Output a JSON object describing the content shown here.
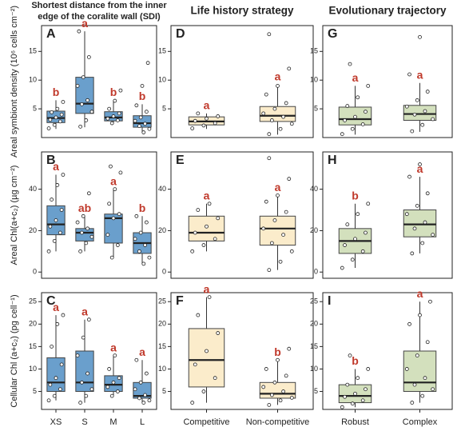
{
  "chart_data": [
    {
      "type": "box",
      "panel": "A",
      "title": [
        "Shortest distance from the inner",
        "edge of the coralite wall (SDI)"
      ],
      "ylabel": "Areal symbiont density (10⁶ cells cm⁻²)",
      "color": "#6a9fcc",
      "ylim": [
        0,
        19.5
      ],
      "yticks": [
        5,
        10,
        15
      ],
      "boxes": [
        {
          "min": 1.5,
          "q1": 2.6,
          "median": 3.4,
          "q3": 4.6,
          "max": 6.5
        },
        {
          "min": 1.8,
          "q1": 4.2,
          "median": 5.9,
          "q3": 10.5,
          "max": 18.5
        },
        {
          "min": 2.4,
          "q1": 2.9,
          "median": 3.5,
          "q3": 4.5,
          "max": 6.5
        },
        {
          "min": 0.8,
          "q1": 1.8,
          "median": 2.5,
          "q3": 3.8,
          "max": 5.8
        }
      ],
      "points": [
        [
          1.6,
          2.2,
          2.8,
          3.1,
          3.5,
          4,
          4.4,
          5,
          6.2
        ],
        [
          1.9,
          3,
          4.5,
          5.8,
          6.5,
          9,
          10.5,
          14,
          18.5
        ],
        [
          2.5,
          3,
          3.3,
          3.7,
          4.2,
          5,
          6.4,
          8.2
        ],
        [
          0.9,
          1.5,
          2,
          2.4,
          2.9,
          3.5,
          4.5,
          5.6,
          9,
          13
        ]
      ],
      "letters": [
        "b",
        "a",
        "b",
        "b"
      ]
    },
    {
      "type": "box",
      "panel": "D",
      "title": [
        "Life history strategy"
      ],
      "color": "#fbeccb",
      "ylim": [
        0,
        19.5
      ],
      "yticks": [
        5,
        10,
        15
      ],
      "boxes": [
        {
          "min": 1.5,
          "q1": 2.2,
          "median": 2.8,
          "q3": 3.6,
          "max": 4.2
        },
        {
          "min": 0.5,
          "q1": 2.8,
          "median": 3.8,
          "q3": 5.4,
          "max": 9.2
        }
      ],
      "points": [
        [
          1.6,
          2.1,
          2.5,
          2.9,
          3.3,
          3.7,
          4.2
        ],
        [
          0.6,
          1.5,
          2.4,
          3,
          3.6,
          4.2,
          5,
          6,
          7.5,
          9,
          12,
          18
        ]
      ],
      "letters": [
        "a",
        "a"
      ]
    },
    {
      "type": "box",
      "panel": "G",
      "title": [
        "Evolutionary trajectory"
      ],
      "color": "#d3e0bd",
      "ylim": [
        0,
        19.5
      ],
      "yticks": [
        5,
        10,
        15
      ],
      "boxes": [
        {
          "min": 0.5,
          "q1": 2.2,
          "median": 3.2,
          "q3": 5.3,
          "max": 9
        },
        {
          "min": 1,
          "q1": 3,
          "median": 4.1,
          "q3": 5.6,
          "max": 9.5
        }
      ],
      "points": [
        [
          0.6,
          1.5,
          2.3,
          3,
          3.6,
          4.5,
          5.5,
          7,
          9,
          12.8
        ],
        [
          1.1,
          2.2,
          3.2,
          4,
          4.6,
          5.4,
          6.5,
          8,
          11,
          17.5
        ]
      ],
      "letters": [
        "a",
        "a"
      ]
    },
    {
      "type": "box",
      "panel": "B",
      "ylabel": "Areal Chl(a+c₂) (µg cm⁻²)",
      "color": "#6a9fcc",
      "ylim": [
        -3,
        58
      ],
      "yticks": [
        0,
        20,
        40
      ],
      "boxes": [
        {
          "min": 10,
          "q1": 18,
          "median": 23,
          "q3": 32,
          "max": 47
        },
        {
          "min": 10,
          "q1": 15,
          "median": 19,
          "q3": 21,
          "max": 27
        },
        {
          "min": 7,
          "q1": 14,
          "median": 26,
          "q3": 28,
          "max": 40
        },
        {
          "min": 4,
          "q1": 9,
          "median": 14,
          "q3": 19,
          "max": 27
        }
      ],
      "points": [
        [
          10,
          15,
          19,
          22,
          25,
          30,
          35,
          42,
          47
        ],
        [
          10,
          14,
          17,
          19,
          21,
          24,
          27,
          38
        ],
        [
          7,
          13,
          18,
          26,
          28,
          33,
          40,
          48,
          51
        ],
        [
          4,
          7,
          10,
          13,
          16,
          19,
          24,
          27
        ]
      ],
      "letters": [
        "a",
        "ab",
        "a",
        "b"
      ]
    },
    {
      "type": "box",
      "panel": "E",
      "color": "#fbeccb",
      "ylim": [
        -3,
        58
      ],
      "yticks": [
        0,
        20,
        40
      ],
      "boxes": [
        {
          "min": 10,
          "q1": 15,
          "median": 19,
          "q3": 27,
          "max": 33
        },
        {
          "min": 1,
          "q1": 13,
          "median": 21,
          "q3": 27,
          "max": 37
        }
      ],
      "points": [
        [
          10,
          13,
          16,
          19,
          22,
          26,
          30,
          33
        ],
        [
          1,
          5,
          10,
          14,
          18,
          21,
          25,
          29,
          34,
          37,
          45,
          55
        ]
      ],
      "letters": [
        "a",
        "a"
      ]
    },
    {
      "type": "box",
      "panel": "H",
      "color": "#d3e0bd",
      "ylim": [
        -3,
        58
      ],
      "yticks": [
        0,
        20,
        40
      ],
      "boxes": [
        {
          "min": 2,
          "q1": 9,
          "median": 15,
          "q3": 21,
          "max": 33
        },
        {
          "min": 9,
          "q1": 17,
          "median": 23,
          "q3": 30,
          "max": 46
        }
      ],
      "points": [
        [
          2,
          6,
          10,
          13,
          16,
          19,
          23,
          28,
          33
        ],
        [
          9,
          14,
          18,
          21,
          24,
          28,
          32,
          38,
          46,
          52
        ]
      ],
      "letters": [
        "b",
        "a"
      ]
    },
    {
      "type": "box",
      "panel": "C",
      "ylabel": "Cellular Chl (a+c₂) (pg cell⁻¹)",
      "color": "#6a9fcc",
      "ylim": [
        1,
        27
      ],
      "yticks": [
        5,
        10,
        15,
        20,
        25
      ],
      "boxes": [
        {
          "min": 3,
          "q1": 5,
          "median": 7,
          "q3": 12.5,
          "max": 22
        },
        {
          "min": 2.5,
          "q1": 5,
          "median": 7,
          "q3": 14,
          "max": 21
        },
        {
          "min": 4,
          "q1": 5,
          "median": 6.5,
          "q3": 8.5,
          "max": 13
        },
        {
          "min": 2.5,
          "q1": 3.5,
          "median": 4,
          "q3": 7,
          "max": 12
        }
      ],
      "points": [
        [
          3,
          4,
          5.5,
          6.5,
          8,
          11,
          15,
          20,
          22
        ],
        [
          2.5,
          4,
          5.5,
          7,
          9,
          13,
          17,
          21
        ],
        [
          4,
          5,
          6,
          7,
          8,
          10,
          13
        ],
        [
          2.5,
          3,
          3.5,
          4.2,
          5.5,
          7,
          9,
          12
        ]
      ],
      "letters": [
        "a",
        "a",
        "a",
        "a"
      ]
    },
    {
      "type": "box",
      "panel": "F",
      "categories": [
        "Competitive",
        "Non-competitive"
      ],
      "color": "#fbeccb",
      "ylim": [
        1,
        27
      ],
      "yticks": [
        5,
        10,
        15,
        20,
        25
      ],
      "boxes": [
        {
          "min": 2.5,
          "q1": 6,
          "median": 12,
          "q3": 19,
          "max": 26
        },
        {
          "min": 2,
          "q1": 3.5,
          "median": 4.5,
          "q3": 7,
          "max": 12
        }
      ],
      "points": [
        [
          2.5,
          5,
          8,
          11,
          14,
          18,
          22,
          26
        ],
        [
          2,
          3,
          3.6,
          4.2,
          5,
          6,
          7,
          8.5,
          10,
          12,
          14.5
        ]
      ],
      "letters": [
        "a",
        "b"
      ]
    },
    {
      "type": "box",
      "panel": "I",
      "categories": [
        "Robust",
        "Complex"
      ],
      "color": "#d3e0bd",
      "ylim": [
        1,
        27
      ],
      "yticks": [
        5,
        10,
        15,
        20,
        25
      ],
      "boxes": [
        {
          "min": 1.5,
          "q1": 2.5,
          "median": 4,
          "q3": 6.5,
          "max": 10
        },
        {
          "min": 2.5,
          "q1": 5,
          "median": 7,
          "q3": 14,
          "max": 25
        }
      ],
      "points": [
        [
          1.5,
          2.3,
          3,
          3.8,
          4.5,
          5.5,
          6.5,
          8,
          10,
          13
        ],
        [
          2.5,
          4,
          5.5,
          6.5,
          8,
          10,
          13,
          16,
          20,
          22,
          25
        ]
      ],
      "letters": [
        "b",
        "a"
      ]
    }
  ],
  "x_categories": [
    "XS",
    "S",
    "M",
    "L"
  ]
}
